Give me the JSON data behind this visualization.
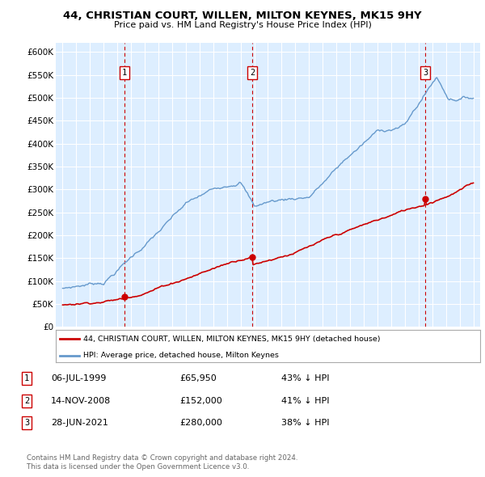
{
  "title1": "44, CHRISTIAN COURT, WILLEN, MILTON KEYNES, MK15 9HY",
  "title2": "Price paid vs. HM Land Registry's House Price Index (HPI)",
  "xlim": [
    1994.5,
    2025.5
  ],
  "ylim": [
    0,
    620000
  ],
  "yticks": [
    0,
    50000,
    100000,
    150000,
    200000,
    250000,
    300000,
    350000,
    400000,
    450000,
    500000,
    550000,
    600000
  ],
  "ytick_labels": [
    "£0",
    "£50K",
    "£100K",
    "£150K",
    "£200K",
    "£250K",
    "£300K",
    "£350K",
    "£400K",
    "£450K",
    "£500K",
    "£550K",
    "£600K"
  ],
  "xticks": [
    1995,
    1996,
    1997,
    1998,
    1999,
    2000,
    2001,
    2002,
    2003,
    2004,
    2005,
    2006,
    2007,
    2008,
    2009,
    2010,
    2011,
    2012,
    2013,
    2014,
    2015,
    2016,
    2017,
    2018,
    2019,
    2020,
    2021,
    2022,
    2023,
    2024,
    2025
  ],
  "sale_dates": [
    1999.51,
    2008.87,
    2021.49
  ],
  "sale_prices": [
    65950,
    152000,
    280000
  ],
  "sale_labels": [
    "1",
    "2",
    "3"
  ],
  "legend_entries": [
    "44, CHRISTIAN COURT, WILLEN, MILTON KEYNES, MK15 9HY (detached house)",
    "HPI: Average price, detached house, Milton Keynes"
  ],
  "transactions": [
    {
      "label": "1",
      "date": "06-JUL-1999",
      "price": "£65,950",
      "hpi": "43% ↓ HPI"
    },
    {
      "label": "2",
      "date": "14-NOV-2008",
      "price": "£152,000",
      "hpi": "41% ↓ HPI"
    },
    {
      "label": "3",
      "date": "28-JUN-2021",
      "price": "£280,000",
      "hpi": "38% ↓ HPI"
    }
  ],
  "footer1": "Contains HM Land Registry data © Crown copyright and database right 2024.",
  "footer2": "This data is licensed under the Open Government Licence v3.0.",
  "red_color": "#cc0000",
  "blue_color": "#6699cc",
  "bg_color": "#ddeeff",
  "grid_color": "#ffffff",
  "dashed_color": "#cc0000"
}
